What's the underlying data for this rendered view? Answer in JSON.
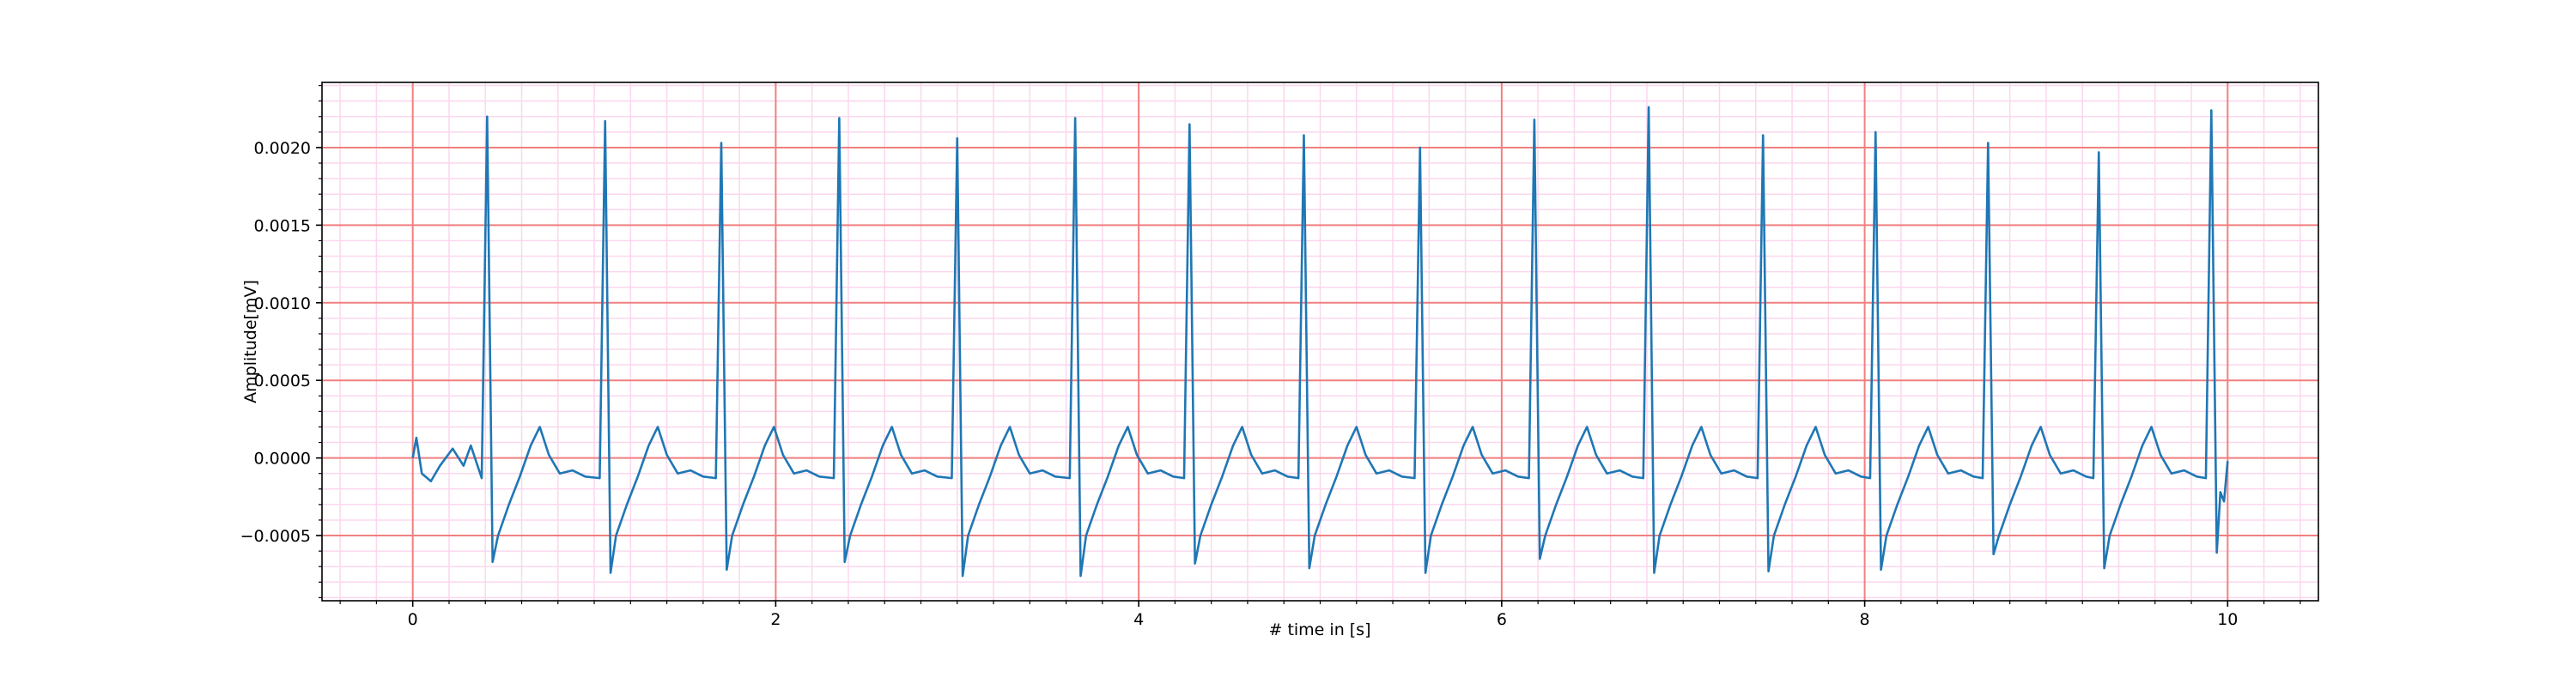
{
  "chart_data": {
    "type": "line",
    "xlabel": "# time in [s]",
    "ylabel": "Amplitude[mV]",
    "color": "#1f77b4",
    "grid": true,
    "major_grid_color": "#f08080",
    "minor_grid_color": "#fbd7ee",
    "xlim": [
      -0.5,
      10.5
    ],
    "ylim": [
      -0.00092,
      0.00242
    ],
    "xticks": [
      0,
      2,
      4,
      6,
      8,
      10
    ],
    "yticks": [
      {
        "value": -0.0005,
        "label": "−0.0005"
      },
      {
        "value": 0,
        "label": "0.0000"
      },
      {
        "value": 0.0005,
        "label": "0.0005"
      },
      {
        "value": 0.001,
        "label": "0.0010"
      },
      {
        "value": 0.0015,
        "label": "0.0015"
      },
      {
        "value": 0.002,
        "label": "0.0020"
      }
    ],
    "xminorticks": [
      -0.4,
      -0.2,
      0,
      0.2,
      0.4,
      0.6,
      0.8,
      1,
      1.2,
      1.4,
      1.6,
      1.8,
      2,
      2.2,
      2.4,
      2.6,
      2.8,
      3,
      3.2,
      3.4,
      3.6,
      3.8,
      4,
      4.2,
      4.4,
      4.6,
      4.8,
      5,
      5.2,
      5.4,
      5.6,
      5.8,
      6,
      6.2,
      6.4,
      6.6,
      6.8,
      7,
      7.2,
      7.4,
      7.6,
      7.8,
      8,
      8.2,
      8.4,
      8.6,
      8.8,
      9,
      9.2,
      9.4,
      9.6,
      9.8,
      10,
      10.2,
      10.4
    ],
    "yminorticks": [
      -0.0009,
      -0.0008,
      -0.0007,
      -0.0006,
      -0.0005,
      -0.0004,
      -0.0003,
      -0.0002,
      -0.0001,
      0,
      0.0001,
      0.0002,
      0.0003,
      0.0004,
      0.0005,
      0.0006,
      0.0007,
      0.0008,
      0.0009,
      0.001,
      0.0011,
      0.0012,
      0.0013,
      0.0014,
      0.0015,
      0.0016,
      0.0017,
      0.0018,
      0.0019,
      0.002,
      0.0021,
      0.0022,
      0.0023,
      0.0024
    ],
    "x": [
      0,
      0.02,
      0.05,
      0.1,
      0.15,
      0.22,
      0.28,
      0.32,
      0.38,
      0.41,
      0.44,
      0.47,
      0.53,
      0.59,
      0.65,
      0.7,
      0.75,
      0.81,
      0.88,
      0.95,
      1.03,
      1.06,
      1.09,
      1.12,
      1.18,
      1.24,
      1.3,
      1.35,
      1.4,
      1.46,
      1.53,
      1.6,
      1.67,
      1.7,
      1.73,
      1.76,
      1.82,
      1.88,
      1.94,
      1.99,
      2.04,
      2.1,
      2.17,
      2.24,
      2.32,
      2.35,
      2.38,
      2.41,
      2.47,
      2.53,
      2.59,
      2.64,
      2.69,
      2.75,
      2.82,
      2.89,
      2.97,
      3.0,
      3.03,
      3.06,
      3.12,
      3.18,
      3.24,
      3.29,
      3.34,
      3.4,
      3.47,
      3.54,
      3.62,
      3.65,
      3.68,
      3.71,
      3.77,
      3.83,
      3.89,
      3.94,
      3.99,
      4.05,
      4.12,
      4.19,
      4.25,
      4.28,
      4.31,
      4.34,
      4.4,
      4.46,
      4.52,
      4.57,
      4.62,
      4.68,
      4.75,
      4.82,
      4.88,
      4.91,
      4.94,
      4.97,
      5.03,
      5.09,
      5.15,
      5.2,
      5.25,
      5.31,
      5.38,
      5.45,
      5.52,
      5.55,
      5.58,
      5.61,
      5.67,
      5.73,
      5.79,
      5.84,
      5.89,
      5.95,
      6.02,
      6.09,
      6.15,
      6.18,
      6.21,
      6.24,
      6.3,
      6.36,
      6.42,
      6.47,
      6.52,
      6.58,
      6.65,
      6.72,
      6.78,
      6.81,
      6.84,
      6.87,
      6.93,
      6.99,
      7.05,
      7.1,
      7.15,
      7.21,
      7.28,
      7.35,
      7.41,
      7.44,
      7.47,
      7.5,
      7.56,
      7.62,
      7.68,
      7.73,
      7.78,
      7.84,
      7.91,
      7.98,
      8.03,
      8.06,
      8.09,
      8.12,
      8.18,
      8.24,
      8.3,
      8.35,
      8.4,
      8.46,
      8.53,
      8.6,
      8.65,
      8.68,
      8.71,
      8.74,
      8.8,
      8.86,
      8.92,
      8.97,
      9.02,
      9.08,
      9.15,
      9.22,
      9.26,
      9.29,
      9.32,
      9.35,
      9.41,
      9.47,
      9.53,
      9.58,
      9.63,
      9.69,
      9.76,
      9.83,
      9.88,
      9.91,
      9.94,
      9.96,
      9.98,
      10.0
    ],
    "values": [
      0.0,
      0.00013,
      -0.0001,
      -0.00015,
      -5e-05,
      6e-05,
      -5e-05,
      8e-05,
      -0.00013,
      0.0022,
      -0.00067,
      -0.0005,
      -0.0003,
      -0.00012,
      8e-05,
      0.0002,
      2e-05,
      -0.0001,
      -8e-05,
      -0.00012,
      -0.00013,
      0.00217,
      -0.00074,
      -0.0005,
      -0.0003,
      -0.00012,
      8e-05,
      0.0002,
      2e-05,
      -0.0001,
      -8e-05,
      -0.00012,
      -0.00013,
      0.00203,
      -0.00072,
      -0.0005,
      -0.0003,
      -0.00012,
      8e-05,
      0.0002,
      2e-05,
      -0.0001,
      -8e-05,
      -0.00012,
      -0.00013,
      0.00219,
      -0.00067,
      -0.0005,
      -0.0003,
      -0.00012,
      8e-05,
      0.0002,
      2e-05,
      -0.0001,
      -8e-05,
      -0.00012,
      -0.00013,
      0.00206,
      -0.00076,
      -0.0005,
      -0.0003,
      -0.00012,
      8e-05,
      0.0002,
      2e-05,
      -0.0001,
      -8e-05,
      -0.00012,
      -0.00013,
      0.00219,
      -0.00076,
      -0.0005,
      -0.0003,
      -0.00012,
      8e-05,
      0.0002,
      2e-05,
      -0.0001,
      -8e-05,
      -0.00012,
      -0.00013,
      0.00215,
      -0.00068,
      -0.0005,
      -0.0003,
      -0.00012,
      8e-05,
      0.0002,
      2e-05,
      -0.0001,
      -8e-05,
      -0.00012,
      -0.00013,
      0.00208,
      -0.00071,
      -0.0005,
      -0.0003,
      -0.00012,
      8e-05,
      0.0002,
      2e-05,
      -0.0001,
      -8e-05,
      -0.00012,
      -0.00013,
      0.002,
      -0.00074,
      -0.0005,
      -0.0003,
      -0.00012,
      8e-05,
      0.0002,
      2e-05,
      -0.0001,
      -8e-05,
      -0.00012,
      -0.00013,
      0.00218,
      -0.00065,
      -0.0005,
      -0.0003,
      -0.00012,
      8e-05,
      0.0002,
      2e-05,
      -0.0001,
      -8e-05,
      -0.00012,
      -0.00013,
      0.00226,
      -0.00074,
      -0.0005,
      -0.0003,
      -0.00012,
      8e-05,
      0.0002,
      2e-05,
      -0.0001,
      -8e-05,
      -0.00012,
      -0.00013,
      0.00208,
      -0.00073,
      -0.0005,
      -0.0003,
      -0.00012,
      8e-05,
      0.0002,
      2e-05,
      -0.0001,
      -8e-05,
      -0.00012,
      -0.00013,
      0.0021,
      -0.00072,
      -0.0005,
      -0.0003,
      -0.00012,
      8e-05,
      0.0002,
      2e-05,
      -0.0001,
      -8e-05,
      -0.00012,
      -0.00013,
      0.00203,
      -0.00062,
      -0.0005,
      -0.0003,
      -0.00012,
      8e-05,
      0.0002,
      2e-05,
      -0.0001,
      -8e-05,
      -0.00012,
      -0.00013,
      0.00197,
      -0.00071,
      -0.0005,
      -0.0003,
      -0.00012,
      8e-05,
      0.0002,
      2e-05,
      -0.0001,
      -8e-05,
      -0.00012,
      -0.00013,
      0.00224,
      -0.00061,
      -0.00022,
      -0.00028,
      -2e-05
    ]
  }
}
